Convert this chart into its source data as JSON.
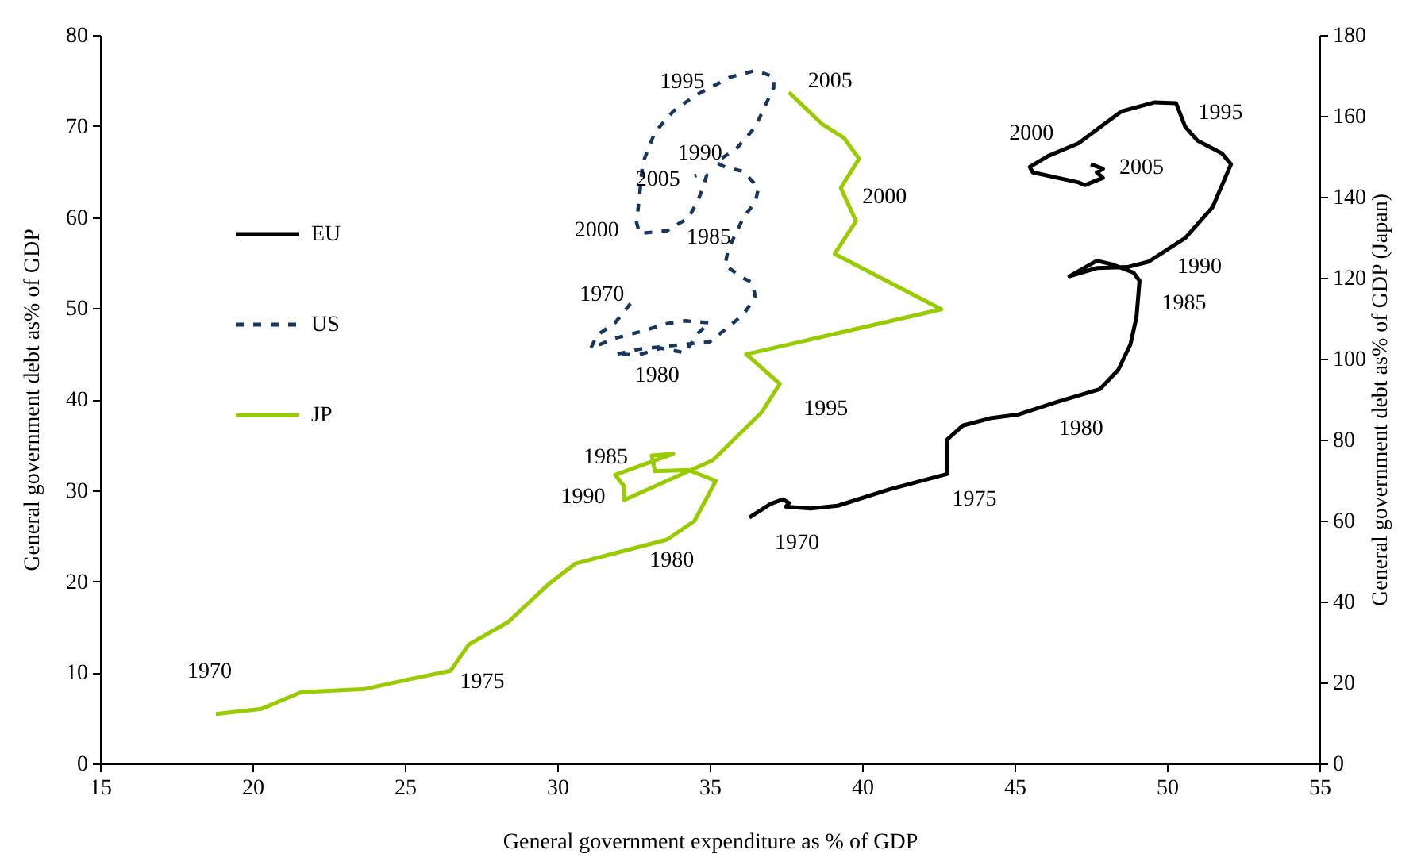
{
  "chart_data": {
    "type": "line",
    "xlabel": "General government expenditure as % of GDP",
    "ylabel": "General government debt as% of GDP",
    "y2label": "General government debt as% of GDP (Japan)",
    "xlim": [
      15,
      55
    ],
    "xticks": [
      15,
      20,
      25,
      30,
      35,
      40,
      45,
      50,
      55
    ],
    "ylim": [
      0,
      80
    ],
    "yticks": [
      0,
      10,
      20,
      30,
      40,
      50,
      60,
      70,
      80
    ],
    "y2lim": [
      0,
      180
    ],
    "y2ticks": [
      0,
      20,
      40,
      60,
      80,
      100,
      120,
      140,
      160,
      180
    ],
    "legend": "left",
    "line_style": "solid",
    "series": [
      {
        "name": "EU",
        "color": "#000000",
        "x": [
          36.3,
          37.0,
          37.4,
          37.6,
          37.5,
          38.3,
          39.2,
          40.9,
          42.8,
          42.8,
          43.3,
          44.2,
          45.1,
          46.4,
          47.8,
          48.4,
          48.8,
          49.0,
          49.1,
          48.9,
          48.2,
          47.7,
          46.8,
          47.7,
          48.7,
          49.4,
          50.6,
          51.5,
          52.1,
          51.8,
          51.0,
          50.6,
          50.3,
          49.6,
          48.5,
          47.7,
          47.1,
          46.1,
          45.5,
          45.6,
          47.1,
          47.3,
          47.9,
          47.7,
          47.9,
          47.5
        ],
        "values": [
          27.0,
          28.5,
          29.0,
          28.6,
          28.2,
          28.0,
          28.3,
          30.1,
          31.8,
          35.6,
          37.1,
          37.9,
          38.3,
          39.7,
          41.1,
          43.2,
          46.0,
          49.0,
          53.0,
          53.9,
          54.8,
          55.2,
          53.5,
          54.4,
          54.5,
          55.1,
          57.7,
          61.1,
          65.8,
          67.0,
          68.4,
          69.9,
          72.5,
          72.6,
          71.6,
          69.6,
          68.1,
          66.7,
          65.5,
          64.9,
          63.8,
          63.5,
          64.3,
          64.9,
          65.3,
          65.8
        ]
      },
      {
        "name": "US",
        "color": "#17375e",
        "line_style": "dashed",
        "x": [
          32.4,
          31.9,
          31.3,
          31.1,
          31.9,
          32.7,
          33.6,
          34.2,
          35.0,
          34.6,
          34.2,
          33.4,
          32.7,
          31.9,
          32.7,
          34.1,
          35.0,
          35.6,
          36.1,
          36.5,
          36.4,
          36.1,
          35.5,
          35.6,
          35.7,
          36.1,
          36.5,
          36.6,
          36.1,
          35.5,
          35.2,
          35.9,
          36.5,
          36.8,
          37.1,
          37.1,
          36.5,
          35.7,
          35.3,
          34.5,
          33.8,
          33.2,
          32.8,
          32.7,
          32.6,
          32.7,
          33.6,
          34.3,
          34.6,
          34.8,
          34.9,
          34.6,
          34.5
        ],
        "values": [
          50.5,
          48.4,
          47.0,
          45.6,
          46.7,
          47.4,
          48.3,
          48.6,
          48.4,
          47.2,
          45.1,
          45.6,
          44.9,
          44.9,
          45.5,
          46.0,
          46.3,
          47.9,
          49.3,
          51.2,
          52.8,
          53.3,
          54.7,
          56.3,
          57.1,
          59.9,
          61.7,
          63.2,
          65.0,
          65.5,
          66.0,
          67.6,
          69.9,
          72.1,
          74.2,
          75.4,
          76.1,
          75.4,
          74.7,
          73.3,
          71.6,
          69.3,
          65.9,
          62.4,
          59.4,
          58.2,
          58.5,
          59.9,
          61.7,
          63.4,
          64.6,
          64.6,
          64.5
        ]
      },
      {
        "name": "JP",
        "color": "#99cc00",
        "axis": "y2",
        "x": [
          18.8,
          20.3,
          21.6,
          23.7,
          25.1,
          26.5,
          27.1,
          28.4,
          29.7,
          30.6,
          33.6,
          34.5,
          35.2,
          34.3,
          33.2,
          33.1,
          33.8,
          31.9,
          32.2,
          32.2,
          35.1,
          36.7,
          37.3,
          36.2,
          42.6,
          39.1,
          39.8,
          39.3,
          39.9,
          39.4,
          38.7,
          37.6
        ],
        "values": [
          12.2,
          13.5,
          17.6,
          18.4,
          20.7,
          22.9,
          29.4,
          35.0,
          44.2,
          49.4,
          55.3,
          59.9,
          69.8,
          72.5,
          72.2,
          76.1,
          76.5,
          71.3,
          68.4,
          65.1,
          74.9,
          86.7,
          93.8,
          101.1,
          112.2,
          125.9,
          134.0,
          142.2,
          149.4,
          154.6,
          157.9,
          165.8
        ]
      }
    ],
    "annotations": [
      {
        "text": "1970",
        "x": 36.3,
        "y": 27.0
      },
      {
        "text": "1975",
        "x": 42.8,
        "y": 31.8
      },
      {
        "text": "1980",
        "x": 46.4,
        "y": 39.7
      },
      {
        "text": "1985",
        "x": 49.0,
        "y": 49.0
      },
      {
        "text": "1990",
        "x": 49.4,
        "y": 55.1
      },
      {
        "text": "1995",
        "x": 50.3,
        "y": 72.5
      },
      {
        "text": "2000",
        "x": 45.5,
        "y": 65.5
      },
      {
        "text": "2005",
        "x": 47.5,
        "y": 65.8
      },
      {
        "text": "1970",
        "x": 32.4,
        "y": 50.5
      },
      {
        "text": "1980",
        "x": 32.7,
        "y": 44.9
      },
      {
        "text": "1985",
        "x": 35.7,
        "y": 57.1
      },
      {
        "text": "1990",
        "x": 35.2,
        "y": 66.0
      },
      {
        "text": "1995",
        "x": 35.3,
        "y": 74.7
      },
      {
        "text": "2000",
        "x": 32.6,
        "y": 59.4
      },
      {
        "text": "2005",
        "x": 34.5,
        "y": 64.5
      },
      {
        "text": "1970",
        "x": 18.8,
        "y": 5.4
      },
      {
        "text": "1975",
        "x": 26.5,
        "y": 10.2
      },
      {
        "text": "1980",
        "x": 33.6,
        "y": 24.6
      },
      {
        "text": "1985",
        "x": 33.1,
        "y": 33.8
      },
      {
        "text": "1990",
        "x": 32.2,
        "y": 28.9
      },
      {
        "text": "1995",
        "x": 37.3,
        "y": 41.7
      },
      {
        "text": "2000",
        "x": 39.8,
        "y": 59.6
      },
      {
        "text": "2005",
        "x": 37.6,
        "y": 73.7
      }
    ]
  }
}
